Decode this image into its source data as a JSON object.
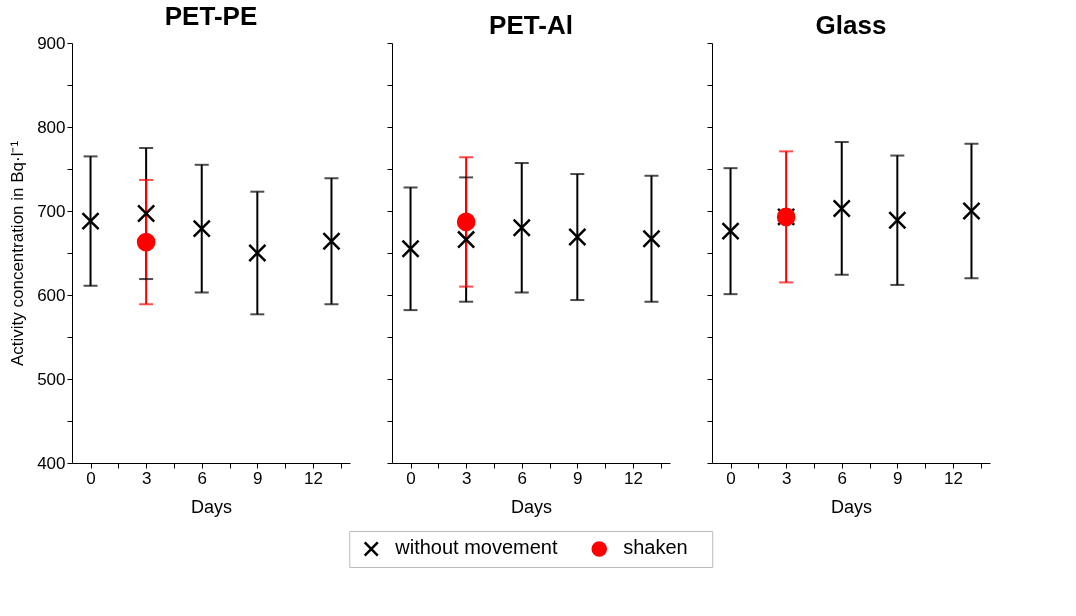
{
  "chart_data": [
    {
      "type": "scatter",
      "title": "PET-PE",
      "xlabel": "Days",
      "ylabel": "Activity concentration  in Bq·l⁻¹",
      "xlim": [
        -1,
        14
      ],
      "ylim": [
        400,
        900
      ],
      "xticks": [
        0,
        {
          "value": 1.5,
          "label": null
        },
        3,
        {
          "value": 4.5,
          "label": null
        },
        6,
        {
          "value": 7.5,
          "label": null
        },
        9,
        {
          "value": 10.5,
          "label": null
        },
        12,
        {
          "value": 13.5,
          "label": null
        }
      ],
      "yticks": [
        400,
        {
          "value": 450,
          "label": null
        },
        500,
        {
          "value": 550,
          "label": null
        },
        600,
        {
          "value": 650,
          "label": null
        },
        700,
        {
          "value": 750,
          "label": null
        },
        800,
        {
          "value": 850,
          "label": null
        },
        900
      ],
      "legend": "bottom",
      "grid": false,
      "series": [
        {
          "name": "without movement",
          "color": "#000000",
          "marker": "cross",
          "x": [
            0,
            3,
            6,
            9,
            13
          ],
          "values": [
            688,
            697,
            679,
            650,
            664
          ],
          "errors": [
            77,
            78,
            76,
            73,
            75
          ]
        },
        {
          "name": "shaken",
          "color": "#ff0000",
          "marker": "circle",
          "x": [
            3
          ],
          "values": [
            663
          ],
          "errors": [
            74
          ]
        }
      ]
    },
    {
      "type": "scatter",
      "title": "PET-Al",
      "xlabel": "Days",
      "xlim": [
        -1,
        14
      ],
      "ylim": [
        400,
        900
      ],
      "tick_labels": "x",
      "xticks": [
        0,
        {
          "value": 1.5,
          "label": null
        },
        3,
        {
          "value": 4.5,
          "label": null
        },
        6,
        {
          "value": 7.5,
          "label": null
        },
        9,
        {
          "value": 10.5,
          "label": null
        },
        12,
        {
          "value": 13.5,
          "label": null
        }
      ],
      "yticks": [
        400,
        {
          "value": 450,
          "label": null
        },
        500,
        {
          "value": 550,
          "label": null
        },
        600,
        {
          "value": 650,
          "label": null
        },
        700,
        {
          "value": 750,
          "label": null
        },
        800,
        {
          "value": 850,
          "label": null
        },
        900
      ],
      "legend": "bottom",
      "grid": false,
      "series": [
        {
          "name": "without movement",
          "color": "#000000",
          "marker": "cross",
          "x": [
            0,
            3,
            6,
            9,
            13
          ],
          "values": [
            655,
            666,
            680,
            669,
            667
          ],
          "errors": [
            73,
            74,
            77,
            75,
            75
          ]
        },
        {
          "name": "shaken",
          "color": "#ff0000",
          "marker": "circle",
          "x": [
            3
          ],
          "values": [
            687
          ],
          "errors": [
            77
          ]
        }
      ]
    },
    {
      "type": "scatter",
      "title": "Glass",
      "xlabel": "Days",
      "xlim": [
        -1,
        14
      ],
      "ylim": [
        400,
        900
      ],
      "tick_labels": "x",
      "xticks": [
        0,
        {
          "value": 1.5,
          "label": null
        },
        3,
        {
          "value": 4.5,
          "label": null
        },
        6,
        {
          "value": 7.5,
          "label": null
        },
        9,
        {
          "value": 10.5,
          "label": null
        },
        12,
        {
          "value": 13.5,
          "label": null
        }
      ],
      "yticks": [
        400,
        {
          "value": 450,
          "label": null
        },
        500,
        {
          "value": 550,
          "label": null
        },
        600,
        {
          "value": 650,
          "label": null
        },
        700,
        {
          "value": 750,
          "label": null
        },
        800,
        {
          "value": 850,
          "label": null
        },
        900
      ],
      "legend": "bottom",
      "grid": false,
      "series": [
        {
          "name": "without movement",
          "color": "#000000",
          "marker": "cross",
          "x": [
            0,
            3,
            6,
            9,
            13
          ],
          "values": [
            676,
            693,
            703,
            689,
            700
          ],
          "errors": [
            75,
            null,
            79,
            77,
            80
          ]
        },
        {
          "name": "shaken",
          "color": "#ff0000",
          "marker": "circle",
          "x": [
            3
          ],
          "values": [
            693
          ],
          "errors": [
            78
          ]
        }
      ]
    }
  ]
}
